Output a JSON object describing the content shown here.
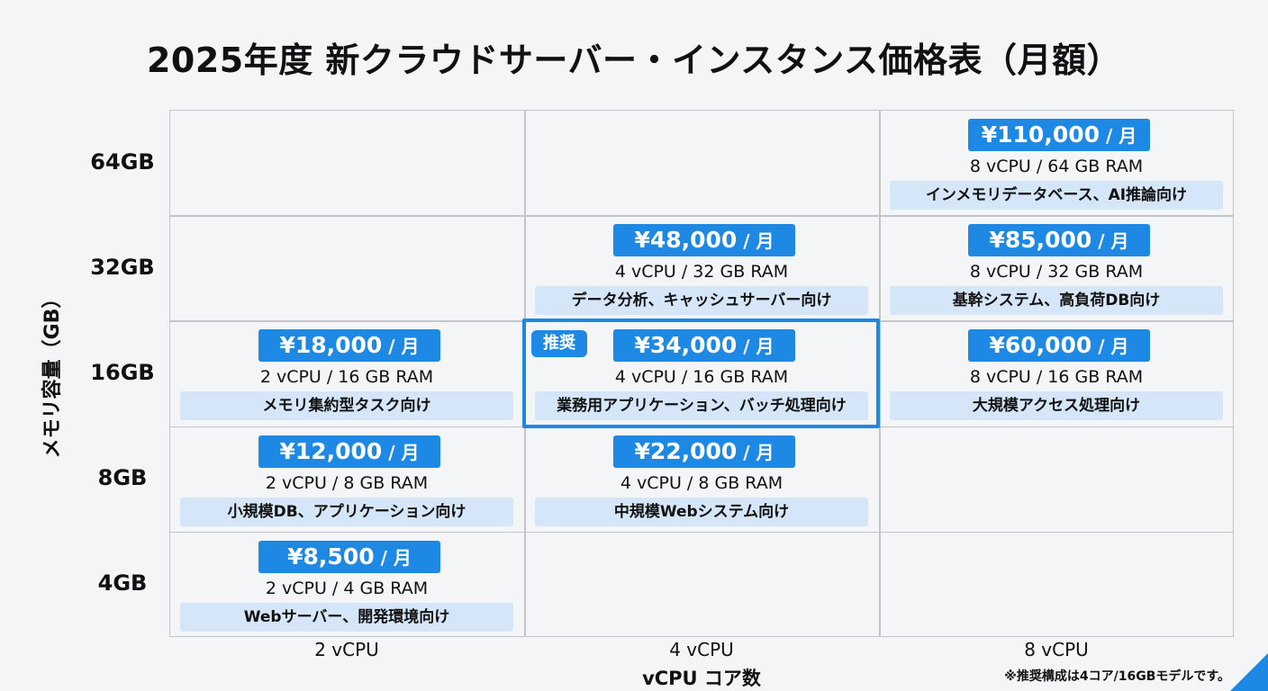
{
  "chart_data": {
    "type": "table",
    "title": "2025年度 新クラウドサーバー・インスタンス価格表（月額）",
    "xlabel": "vCPU コア数",
    "ylabel": "メモリ容量（GB）",
    "x_categories": [
      "2 vCPU",
      "4 vCPU",
      "8 vCPU"
    ],
    "y_categories": [
      "64GB",
      "32GB",
      "16GB",
      "8GB",
      "4GB"
    ],
    "price_unit": " / 月",
    "cells": [
      {
        "col": 2,
        "row": 0,
        "price": "¥110,000",
        "spec": "8 vCPU / 64 GB RAM",
        "use": "インメモリデータベース、AI推論向け"
      },
      {
        "col": 1,
        "row": 1,
        "price": "¥48,000",
        "spec": "4 vCPU / 32 GB RAM",
        "use": "データ分析、キャッシュサーバー向け"
      },
      {
        "col": 2,
        "row": 1,
        "price": "¥85,000",
        "spec": "8 vCPU / 32 GB RAM",
        "use": "基幹システム、高負荷DB向け"
      },
      {
        "col": 0,
        "row": 2,
        "price": "¥18,000",
        "spec": "2 vCPU / 16 GB RAM",
        "use": "メモリ集約型タスク向け"
      },
      {
        "col": 1,
        "row": 2,
        "price": "¥34,000",
        "spec": "4 vCPU / 16 GB RAM",
        "use": "業務用アプリケーション、バッチ処理向け",
        "recommended": true
      },
      {
        "col": 2,
        "row": 2,
        "price": "¥60,000",
        "spec": "8 vCPU / 16 GB RAM",
        "use": "大規模アクセス処理向け"
      },
      {
        "col": 0,
        "row": 3,
        "price": "¥12,000",
        "spec": "2 vCPU / 8 GB RAM",
        "use": "小規模DB、アプリケーション向け"
      },
      {
        "col": 1,
        "row": 3,
        "price": "¥22,000",
        "spec": "4 vCPU / 8 GB RAM",
        "use": "中規模Webシステム向け"
      },
      {
        "col": 0,
        "row": 4,
        "price": "¥8,500",
        "spec": "2 vCPU / 4 GB RAM",
        "use": "Webサーバー、開発環境向け"
      }
    ],
    "badge_label": "推奨",
    "footnote": "※推奨構成は4コア/16GBモデルです。",
    "colors": {
      "accent": "#1e88e5",
      "use_bg": "#d4e6f7",
      "grid": "#c2c4c8",
      "background": "#f4f5f7"
    }
  }
}
